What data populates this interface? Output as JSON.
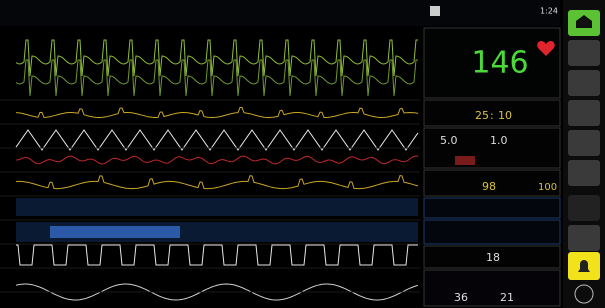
{
  "clock": "1:24",
  "vitals": {
    "hr": "146",
    "ratio_a": "25",
    "ratio_b": "10",
    "param_a": "5.0",
    "param_b": "1.0",
    "spo2": "98",
    "spo2_limit": "100",
    "resp": "18",
    "temp_a": "36",
    "temp_b": "21"
  }
}
